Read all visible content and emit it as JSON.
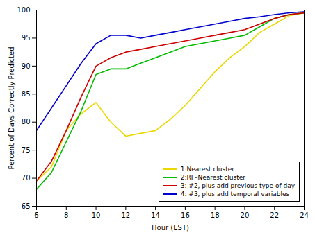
{
  "chart_data": {
    "type": "line",
    "xlabel": "Hour (EST)",
    "ylabel": "Percent of Days Correctly Predicted",
    "x": [
      6,
      7,
      8,
      9,
      10,
      11,
      12,
      13,
      14,
      15,
      16,
      17,
      18,
      19,
      20,
      21,
      22,
      23,
      24
    ],
    "series": [
      {
        "name": "1:Nearest cluster",
        "color": "#EAD800",
        "values": [
          69.5,
          72.0,
          78.5,
          81.5,
          83.5,
          80.0,
          77.5,
          78.0,
          78.5,
          80.5,
          83.0,
          86.0,
          89.0,
          91.5,
          93.5,
          96.0,
          97.5,
          99.0,
          99.5
        ]
      },
      {
        "name": "2:RF–Nearest cluster",
        "color": "#00BB00",
        "values": [
          68.0,
          71.0,
          76.5,
          82.0,
          88.5,
          89.5,
          89.5,
          90.5,
          91.5,
          92.5,
          93.5,
          94.0,
          94.5,
          95.0,
          95.5,
          97.0,
          98.5,
          99.2,
          99.5
        ]
      },
      {
        "name": "3: #2, plus add previous type of day",
        "color": "#CC0000",
        "values": [
          69.5,
          73.0,
          78.5,
          84.5,
          90.0,
          91.5,
          92.5,
          93.0,
          93.5,
          94.0,
          94.5,
          95.0,
          95.5,
          96.0,
          96.5,
          97.5,
          98.5,
          99.2,
          99.5
        ]
      },
      {
        "name": "4: #3, plus add temporal variables",
        "color": "#0000CC",
        "values": [
          78.5,
          82.5,
          86.5,
          90.5,
          94.0,
          95.5,
          95.5,
          95.0,
          95.5,
          96.0,
          96.5,
          97.0,
          97.5,
          98.0,
          98.5,
          98.8,
          99.2,
          99.5,
          99.7
        ]
      }
    ],
    "xlim": [
      6,
      24
    ],
    "ylim": [
      65,
      100
    ],
    "xticks": [
      6,
      8,
      10,
      12,
      14,
      16,
      18,
      20,
      22,
      24
    ],
    "yticks": [
      65,
      70,
      75,
      80,
      85,
      90,
      95,
      100
    ],
    "grid": false,
    "legend": "lower right"
  }
}
